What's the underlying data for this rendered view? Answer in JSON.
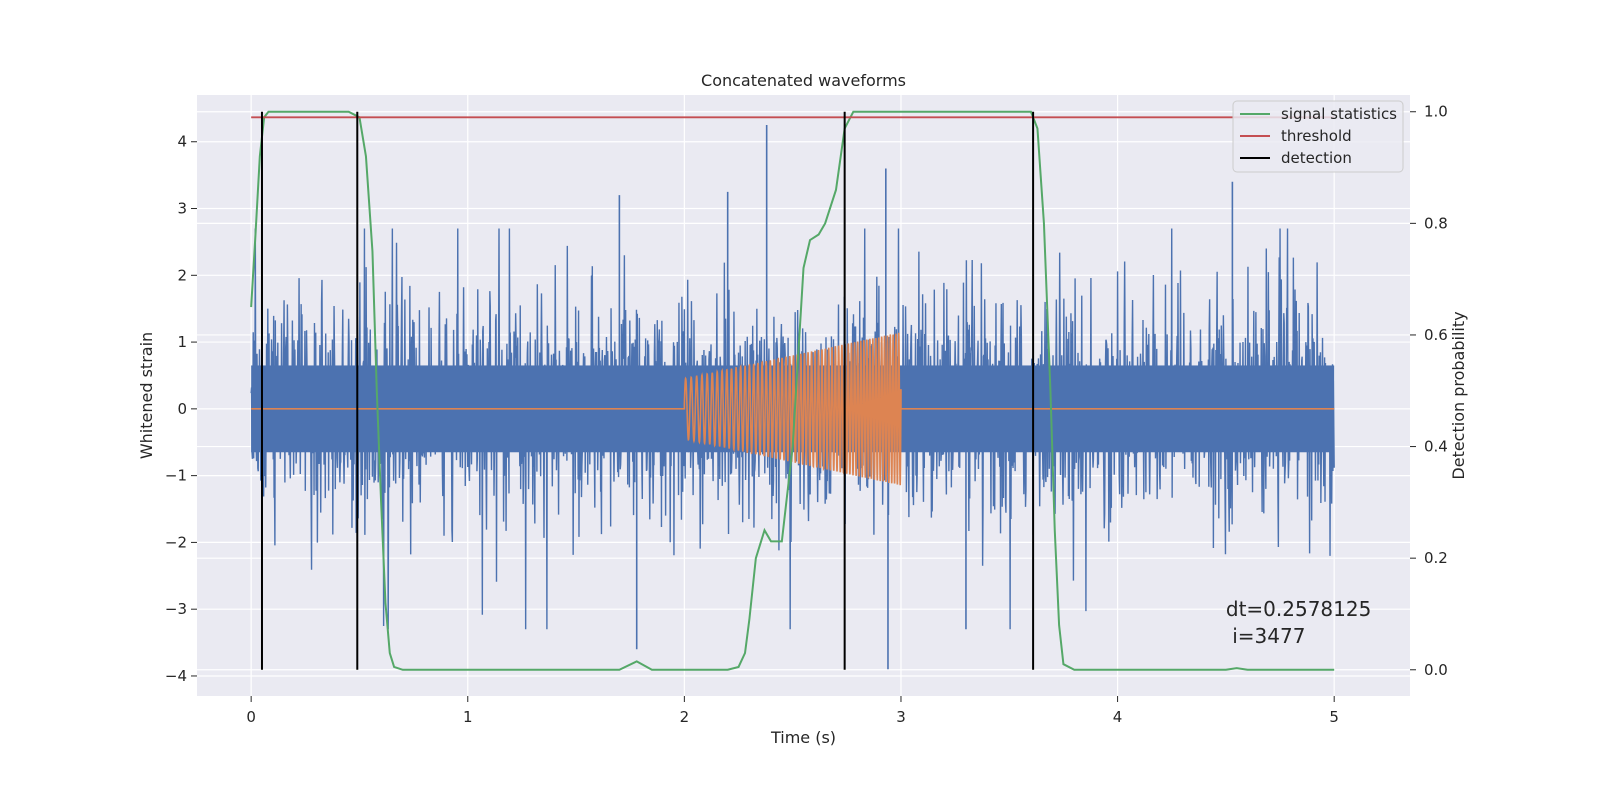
{
  "chart_data": {
    "type": "line",
    "title": "Concatenated waveforms",
    "xlabel": "Time (s)",
    "ylabel": "Whitened strain",
    "y2label": "Detection probability",
    "xlim": [
      -0.25,
      5.35
    ],
    "ylim": [
      -4.3,
      4.7
    ],
    "y2lim": [
      -0.047,
      1.03
    ],
    "xticks": [
      0,
      1,
      2,
      3,
      4,
      5
    ],
    "yticks": [
      -4,
      -3,
      -2,
      -1,
      0,
      1,
      2,
      3,
      4
    ],
    "y2ticks": [
      0.0,
      0.2,
      0.4,
      0.6,
      0.8,
      1.0
    ],
    "grid": true,
    "legend_position": "top-right",
    "colors": {
      "strain": "#4c72b0",
      "template": "#dd8452",
      "signal_statistics": "#55a868",
      "threshold": "#c44e52",
      "detection": "#000000",
      "background": "#eaeaf2",
      "grid": "#ffffff"
    },
    "strain": {
      "x_range": [
        0,
        5
      ],
      "dense_band": [
        -0.65,
        0.65
      ],
      "max_spikes": [
        4.25,
        3.4
      ],
      "min_spikes": [
        -3.9,
        -3.6
      ]
    },
    "template": {
      "x_range": [
        2.0,
        3.0
      ],
      "amplitude_start": 0.45,
      "amplitude_end": 1.15,
      "baseline": 0
    },
    "series": [
      {
        "name": "signal statistics",
        "axis": "right",
        "x": [
          0,
          0.02,
          0.04,
          0.06,
          0.08,
          0.1,
          0.45,
          0.5,
          0.53,
          0.56,
          0.58,
          0.6,
          0.62,
          0.64,
          0.66,
          0.7,
          1.7,
          1.78,
          1.85,
          2.2,
          2.25,
          2.28,
          2.3,
          2.33,
          2.37,
          2.4,
          2.45,
          2.5,
          2.55,
          2.58,
          2.62,
          2.65,
          2.7,
          2.74,
          2.78,
          2.85,
          3.6,
          3.63,
          3.66,
          3.69,
          3.71,
          3.73,
          3.75,
          3.8,
          4.5,
          4.55,
          4.6,
          5.0
        ],
        "y": [
          0.65,
          0.78,
          0.92,
          0.99,
          1.0,
          1.0,
          1.0,
          0.99,
          0.92,
          0.75,
          0.5,
          0.3,
          0.12,
          0.03,
          0.005,
          0.0,
          0.0,
          0.015,
          0.0,
          0.0,
          0.005,
          0.03,
          0.09,
          0.2,
          0.25,
          0.23,
          0.23,
          0.4,
          0.72,
          0.77,
          0.78,
          0.8,
          0.86,
          0.97,
          1.0,
          1.0,
          1.0,
          0.97,
          0.8,
          0.5,
          0.25,
          0.08,
          0.01,
          0.0,
          0.0,
          0.003,
          0.0,
          0.0
        ]
      },
      {
        "name": "threshold",
        "axis": "right",
        "x": [
          0,
          5
        ],
        "y": [
          0.99,
          0.99
        ]
      },
      {
        "name": "detection",
        "axis": "right",
        "vlines": [
          0.05,
          0.49,
          2.74,
          3.61
        ],
        "ymin": 0.0,
        "ymax": 1.0
      }
    ],
    "annotation": {
      "line1": "dt=0.2578125",
      "line2": " i=3477",
      "x": 4.5,
      "y": -3.0
    }
  }
}
